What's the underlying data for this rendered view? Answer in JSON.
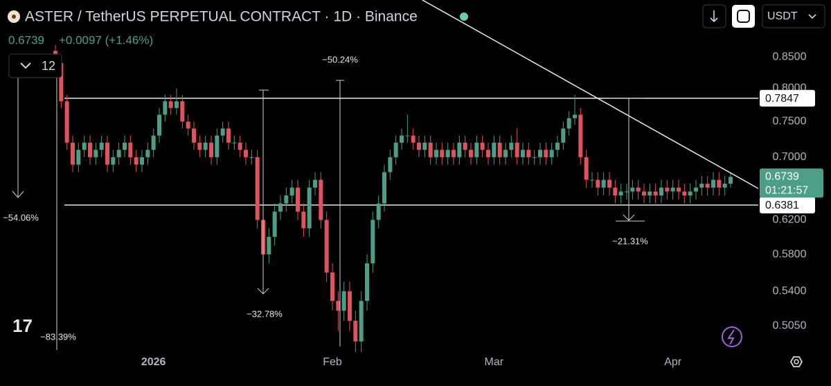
{
  "header": {
    "title": "ASTER / TetherUS PERPETUAL CONTRACT · 1D · Binance",
    "price": "0.6739",
    "change": "+0.0097 (+1.46%)",
    "indicator": "12",
    "currency": "USDT"
  },
  "chart_data": {
    "type": "candlestick",
    "xlim": [
      -9.6,
      121.8
    ],
    "xticks": [
      {
        "value": 17,
        "label": "2026"
      },
      {
        "value": 48,
        "label": "Feb"
      },
      {
        "value": 76,
        "label": "Mar"
      },
      {
        "value": 107,
        "label": "Apr"
      }
    ],
    "ylim": [
      0.482,
      0.949
    ],
    "log_scale": true,
    "yticks": [
      {
        "value": 0.505,
        "label": "0.5050"
      },
      {
        "value": 0.54,
        "label": "0.5400"
      },
      {
        "value": 0.58,
        "label": "0.5800"
      },
      {
        "value": 0.62,
        "label": "0.6200"
      },
      {
        "value": 0.7,
        "label": "0.7000"
      },
      {
        "value": 0.75,
        "label": "0.7500"
      },
      {
        "value": 0.8,
        "label": "0.8000"
      },
      {
        "value": 0.85,
        "label": "0.8500"
      }
    ],
    "up_color": "#4c9e88",
    "down_color": "#e0535c",
    "open": [
      0.86,
      0.84,
      0.78,
      0.72,
      0.69,
      0.71,
      0.72,
      0.7,
      0.71,
      0.72,
      0.69,
      0.7,
      0.71,
      0.72,
      0.7,
      0.69,
      0.7,
      0.71,
      0.73,
      0.76,
      0.78,
      0.77,
      0.78,
      0.75,
      0.74,
      0.72,
      0.71,
      0.72,
      0.7,
      0.73,
      0.74,
      0.72,
      0.72,
      0.71,
      0.7,
      0.7,
      0.62,
      0.58,
      0.6,
      0.63,
      0.64,
      0.65,
      0.66,
      0.63,
      0.61,
      0.66,
      0.67,
      0.62,
      0.56,
      0.53,
      0.52,
      0.54,
      0.51,
      0.49,
      0.53,
      0.57,
      0.62,
      0.64,
      0.68,
      0.7,
      0.72,
      0.73,
      0.73,
      0.72,
      0.71,
      0.72,
      0.7,
      0.71,
      0.7,
      0.71,
      0.7,
      0.72,
      0.71,
      0.7,
      0.72,
      0.71,
      0.7,
      0.72,
      0.7,
      0.71,
      0.72,
      0.7,
      0.71,
      0.7,
      0.7,
      0.71,
      0.7,
      0.71,
      0.72,
      0.74,
      0.755,
      0.76,
      0.7,
      0.67,
      0.67,
      0.66,
      0.67,
      0.66,
      0.65,
      0.655,
      0.655,
      0.66,
      0.655,
      0.65,
      0.655,
      0.65,
      0.66,
      0.655,
      0.66,
      0.655,
      0.65,
      0.655,
      0.66,
      0.665,
      0.66,
      0.67,
      0.66,
      0.665
    ],
    "high": [
      0.87,
      0.85,
      0.79,
      0.73,
      0.72,
      0.73,
      0.73,
      0.72,
      0.73,
      0.73,
      0.71,
      0.72,
      0.73,
      0.73,
      0.71,
      0.71,
      0.72,
      0.74,
      0.77,
      0.79,
      0.79,
      0.8,
      0.79,
      0.76,
      0.75,
      0.73,
      0.73,
      0.73,
      0.74,
      0.75,
      0.75,
      0.73,
      0.73,
      0.72,
      0.71,
      0.71,
      0.63,
      0.61,
      0.64,
      0.65,
      0.66,
      0.67,
      0.67,
      0.64,
      0.67,
      0.68,
      0.68,
      0.63,
      0.57,
      0.54,
      0.55,
      0.55,
      0.52,
      0.54,
      0.58,
      0.63,
      0.65,
      0.69,
      0.71,
      0.73,
      0.74,
      0.76,
      0.74,
      0.73,
      0.73,
      0.73,
      0.72,
      0.72,
      0.72,
      0.72,
      0.73,
      0.73,
      0.72,
      0.73,
      0.73,
      0.72,
      0.73,
      0.73,
      0.72,
      0.73,
      0.74,
      0.72,
      0.72,
      0.71,
      0.72,
      0.72,
      0.72,
      0.73,
      0.75,
      0.765,
      0.79,
      0.77,
      0.71,
      0.68,
      0.68,
      0.68,
      0.68,
      0.67,
      0.665,
      0.665,
      0.67,
      0.67,
      0.665,
      0.665,
      0.665,
      0.67,
      0.67,
      0.67,
      0.67,
      0.665,
      0.665,
      0.67,
      0.675,
      0.675,
      0.68,
      0.68,
      0.675,
      0.68
    ],
    "low": [
      0.83,
      0.77,
      0.71,
      0.68,
      0.68,
      0.7,
      0.69,
      0.69,
      0.7,
      0.68,
      0.68,
      0.69,
      0.7,
      0.69,
      0.68,
      0.68,
      0.69,
      0.7,
      0.72,
      0.75,
      0.76,
      0.76,
      0.74,
      0.73,
      0.71,
      0.7,
      0.7,
      0.69,
      0.69,
      0.72,
      0.71,
      0.71,
      0.7,
      0.69,
      0.69,
      0.61,
      0.54,
      0.57,
      0.59,
      0.62,
      0.63,
      0.64,
      0.62,
      0.6,
      0.6,
      0.65,
      0.61,
      0.55,
      0.52,
      0.5,
      0.51,
      0.5,
      0.48,
      0.48,
      0.52,
      0.56,
      0.61,
      0.63,
      0.67,
      0.69,
      0.71,
      0.72,
      0.71,
      0.7,
      0.7,
      0.69,
      0.69,
      0.69,
      0.69,
      0.69,
      0.69,
      0.7,
      0.69,
      0.69,
      0.7,
      0.69,
      0.69,
      0.69,
      0.69,
      0.7,
      0.69,
      0.69,
      0.69,
      0.69,
      0.69,
      0.69,
      0.69,
      0.7,
      0.71,
      0.73,
      0.745,
      0.69,
      0.66,
      0.66,
      0.65,
      0.65,
      0.65,
      0.64,
      0.64,
      0.645,
      0.645,
      0.645,
      0.64,
      0.64,
      0.64,
      0.64,
      0.645,
      0.645,
      0.645,
      0.64,
      0.64,
      0.645,
      0.65,
      0.65,
      0.65,
      0.65,
      0.65,
      0.66
    ],
    "close": [
      0.84,
      0.78,
      0.72,
      0.69,
      0.71,
      0.72,
      0.7,
      0.71,
      0.72,
      0.69,
      0.7,
      0.71,
      0.72,
      0.7,
      0.69,
      0.7,
      0.71,
      0.73,
      0.76,
      0.78,
      0.77,
      0.78,
      0.75,
      0.74,
      0.72,
      0.71,
      0.72,
      0.7,
      0.73,
      0.74,
      0.72,
      0.72,
      0.71,
      0.7,
      0.7,
      0.62,
      0.58,
      0.6,
      0.63,
      0.64,
      0.65,
      0.66,
      0.63,
      0.61,
      0.66,
      0.67,
      0.62,
      0.56,
      0.53,
      0.52,
      0.54,
      0.51,
      0.49,
      0.53,
      0.57,
      0.62,
      0.64,
      0.68,
      0.7,
      0.72,
      0.73,
      0.73,
      0.72,
      0.71,
      0.72,
      0.7,
      0.71,
      0.7,
      0.71,
      0.7,
      0.72,
      0.71,
      0.7,
      0.72,
      0.71,
      0.7,
      0.72,
      0.7,
      0.71,
      0.72,
      0.7,
      0.71,
      0.7,
      0.7,
      0.71,
      0.7,
      0.71,
      0.72,
      0.74,
      0.755,
      0.76,
      0.7,
      0.67,
      0.67,
      0.66,
      0.67,
      0.66,
      0.65,
      0.655,
      0.655,
      0.66,
      0.655,
      0.65,
      0.655,
      0.65,
      0.66,
      0.655,
      0.66,
      0.655,
      0.65,
      0.655,
      0.66,
      0.665,
      0.66,
      0.67,
      0.66,
      0.665,
      0.6739
    ],
    "levels": [
      0.7847,
      0.6381
    ],
    "last_price": 0.6739,
    "countdown": "01:21:57",
    "annotations": [
      "−50.24%",
      "−54.06%",
      "−83.39%",
      "−32.78%",
      "−21.31%"
    ]
  }
}
